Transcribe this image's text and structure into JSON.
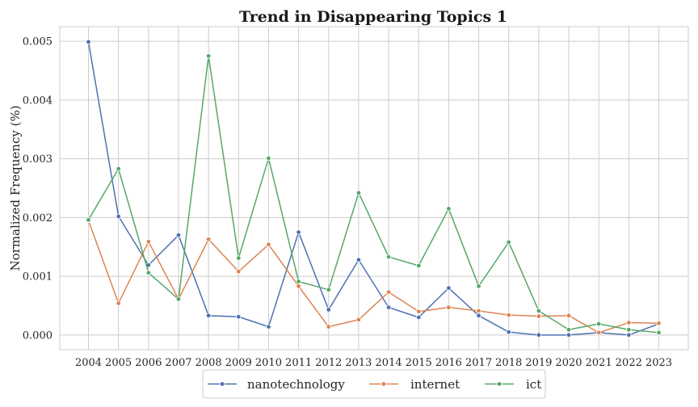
{
  "chart_data": {
    "type": "line",
    "title": "Trend in Disappearing Topics 1",
    "xlabel": "",
    "ylabel": "Normalized Frequency (%)",
    "x": [
      "2004",
      "2005",
      "2006",
      "2007",
      "2008",
      "2009",
      "2010",
      "2011",
      "2012",
      "2013",
      "2014",
      "2015",
      "2016",
      "2017",
      "2018",
      "2019",
      "2020",
      "2021",
      "2022",
      "2023"
    ],
    "ylim": [
      -0.00025,
      0.00525
    ],
    "yticks": [
      0.0,
      0.001,
      0.002,
      0.003,
      0.004,
      0.005
    ],
    "ytick_labels": [
      "0.000",
      "0.001",
      "0.002",
      "0.003",
      "0.004",
      "0.005"
    ],
    "grid": true,
    "legend_position": "bottom-center",
    "series": [
      {
        "name": "nanotechnology",
        "color": "#4c72b0",
        "values": [
          0.00499,
          0.00202,
          0.00119,
          0.0017,
          0.00033,
          0.00031,
          0.00014,
          0.00175,
          0.00043,
          0.00128,
          0.00047,
          0.0003,
          0.0008,
          0.00033,
          5e-05,
          0.0,
          0.0,
          4e-05,
          0.0,
          0.00019
        ]
      },
      {
        "name": "internet",
        "color": "#dd8452",
        "values": [
          0.00195,
          0.00054,
          0.00159,
          0.00061,
          0.00163,
          0.00108,
          0.00154,
          0.00083,
          0.00014,
          0.00026,
          0.00073,
          0.0004,
          0.00047,
          0.00041,
          0.00034,
          0.00032,
          0.00033,
          4e-05,
          0.00021,
          0.0002
        ]
      },
      {
        "name": "ict",
        "color": "#55a868",
        "values": [
          0.00196,
          0.00283,
          0.00106,
          0.00061,
          0.00475,
          0.00131,
          0.00301,
          0.00091,
          0.00077,
          0.00242,
          0.00133,
          0.00118,
          0.00215,
          0.00083,
          0.00158,
          0.00041,
          9e-05,
          0.00019,
          9e-05,
          4e-05
        ]
      }
    ]
  }
}
